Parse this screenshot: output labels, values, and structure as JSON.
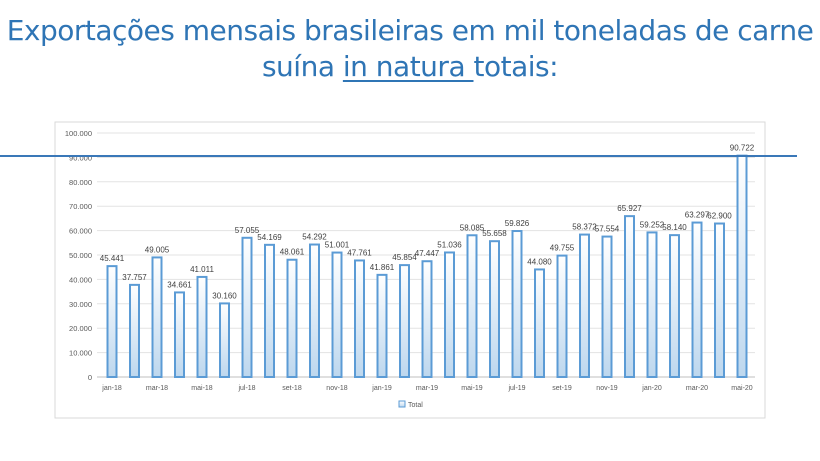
{
  "title": {
    "line1": "Exportações mensais brasileiras em mil toneladas de carne",
    "line2_pre": "suína ",
    "line2_underlined": "in natura ",
    "line2_post": " totais:"
  },
  "colors": {
    "title": "#2f75b5",
    "bar_stroke": "#5b9bd5",
    "bar_fill_top": "#ffffff",
    "bar_fill_bottom": "#bdd7ee",
    "highlight_line": "#3a78b8"
  },
  "chart_data": {
    "type": "bar",
    "categories": [
      "jan-18",
      "fev-18",
      "mar-18",
      "abr-18",
      "mai-18",
      "jun-18",
      "jul-18",
      "ago-18",
      "set-18",
      "out-18",
      "nov-18",
      "dez-18",
      "jan-19",
      "fev-19",
      "mar-19",
      "abr-19",
      "mai-19",
      "jun-19",
      "jul-19",
      "ago-19",
      "set-19",
      "out-19",
      "nov-19",
      "dez-19",
      "jan-20",
      "fev-20",
      "mar-20",
      "abr-20",
      "mai-20"
    ],
    "tick_labels_shown": [
      "jan-18",
      "mar-18",
      "mai-18",
      "jul-18",
      "set-18",
      "nov-18",
      "jan-19",
      "mar-19",
      "mai-19",
      "jul-19",
      "set-19",
      "nov-19",
      "jan-20",
      "mar-20",
      "mai-20"
    ],
    "series": [
      {
        "name": "Total",
        "values": [
          45441,
          37757,
          49005,
          34661,
          41011,
          30160,
          57055,
          54169,
          48061,
          54292,
          51001,
          47761,
          41861,
          45854,
          47447,
          51036,
          58085,
          55658,
          59826,
          44080,
          49755,
          58372,
          57554,
          65927,
          59252,
          58140,
          63297,
          62900,
          90722
        ]
      }
    ],
    "data_labels": [
      "45.441",
      "37.757",
      "49.005",
      "34.661",
      "41.011",
      "30.160",
      "57.055",
      "54.169",
      "48.061",
      "54.292",
      "51.001",
      "47.761",
      "41.861",
      "45.854",
      "47.447",
      "51.036",
      "58.085",
      "55.658",
      "59.826",
      "44.080",
      "49.755",
      "58.372",
      "57.554",
      "65.927",
      "59.252",
      "58.140",
      "63.297",
      "62.900",
      "90.722"
    ],
    "ylim": [
      0,
      100000
    ],
    "yticks": [
      "0",
      "10.000",
      "20.000",
      "30.000",
      "40.000",
      "50.000",
      "60.000",
      "70.000",
      "80.000",
      "90.000",
      "100.000"
    ],
    "grid": true,
    "legend": "bottom",
    "annotation": "horizontal line at 90.000"
  }
}
